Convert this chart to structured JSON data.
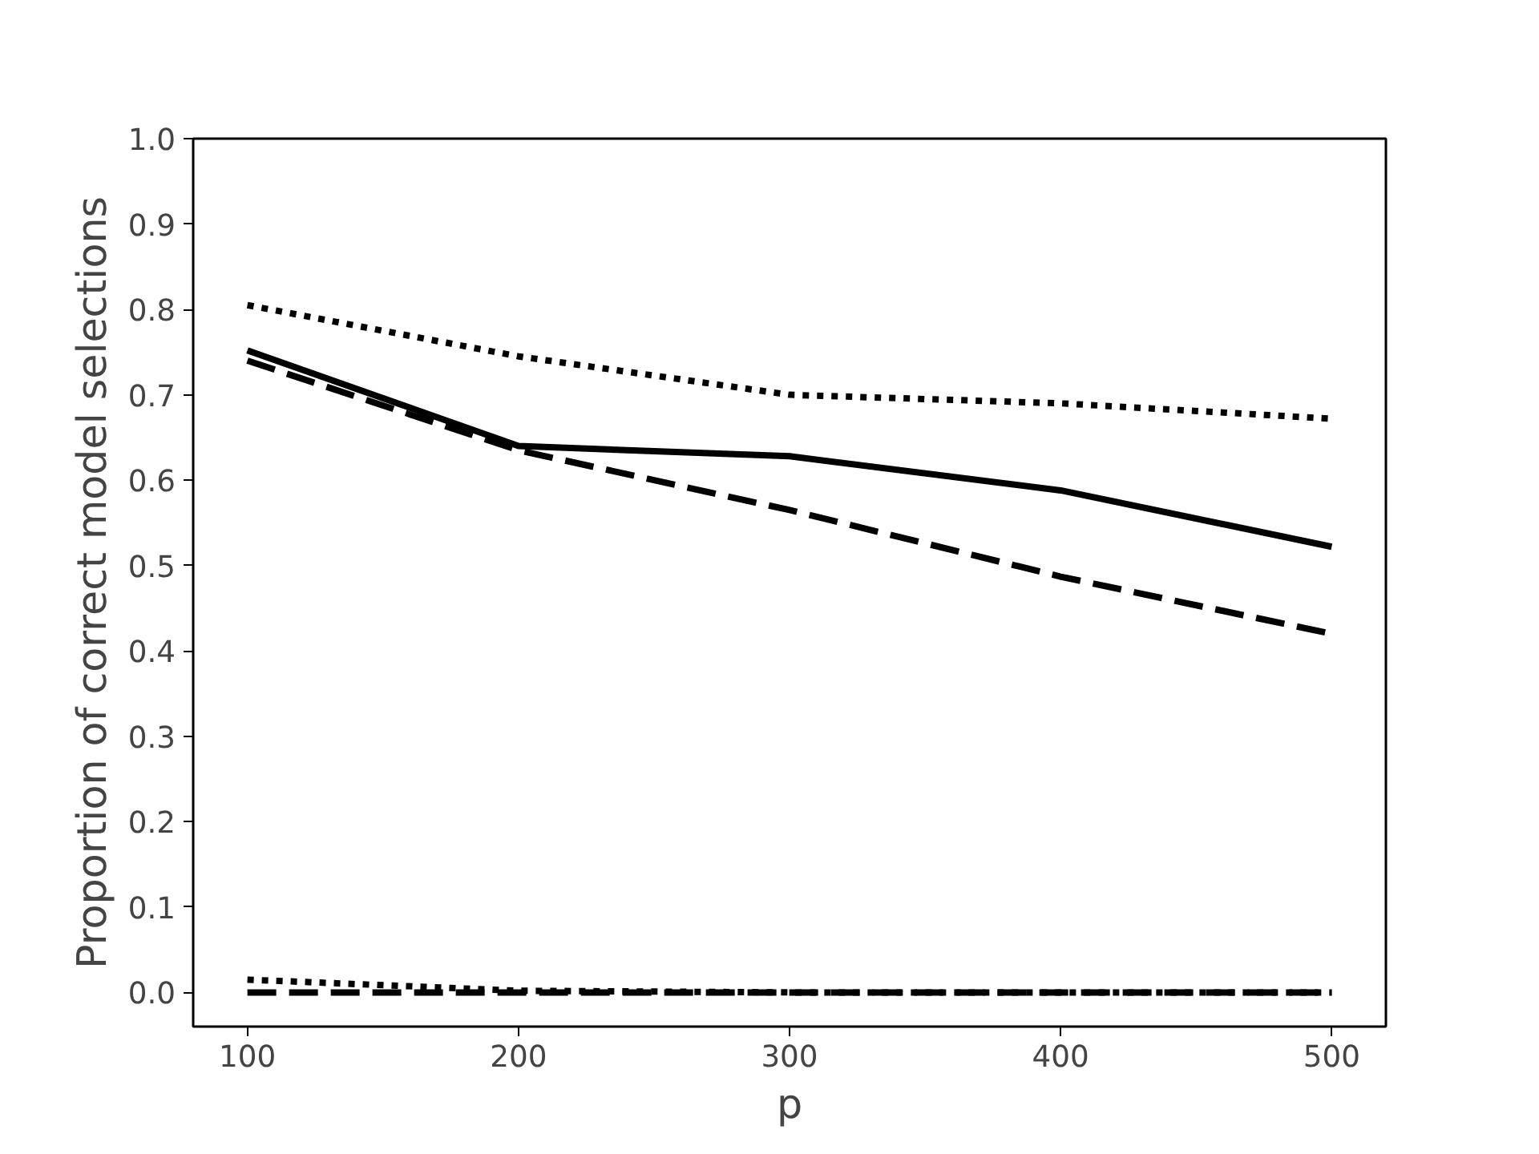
{
  "chart_data": {
    "type": "line",
    "xlabel": "p",
    "ylabel": "Proportion of correct model selections",
    "x": [
      100,
      200,
      300,
      400,
      500
    ],
    "series": [
      {
        "color": "#000000",
        "line_style": "dotted",
        "values": [
          0.805,
          0.745,
          0.7,
          0.69,
          0.672
        ]
      },
      {
        "color": "#000000",
        "line_style": "solid",
        "values": [
          0.752,
          0.64,
          0.628,
          0.588,
          0.522
        ]
      },
      {
        "color": "#000000",
        "line_style": "dashed",
        "values": [
          0.74,
          0.635,
          0.565,
          0.487,
          0.42
        ]
      },
      {
        "color": "#000000",
        "line_style": "dashed",
        "values": [
          0,
          0,
          0,
          0,
          0
        ]
      },
      {
        "color": "#000000",
        "line_style": "dotted",
        "values": [
          0.015,
          0.002,
          0,
          0,
          0
        ]
      }
    ],
    "xlim": [
      80,
      520
    ],
    "ylim": [
      -0.04,
      1.0
    ],
    "xticks": [
      100,
      200,
      300,
      400,
      500
    ],
    "yticks": [
      {
        "value": 0,
        "label": "0.0"
      },
      {
        "value": 0.1,
        "label": "0.1"
      },
      {
        "value": 0.2,
        "label": "0.2"
      },
      {
        "value": 0.3,
        "label": "0.3"
      },
      {
        "value": 0.4,
        "label": "0.4"
      },
      {
        "value": 0.5,
        "label": "0.5"
      },
      {
        "value": 0.6,
        "label": "0.6"
      },
      {
        "value": 0.7,
        "label": "0.7"
      },
      {
        "value": 0.8,
        "label": "0.8"
      },
      {
        "value": 0.9,
        "label": "0.9"
      },
      {
        "value": 1.0,
        "label": "1.0"
      }
    ],
    "grid": false,
    "marker": "none"
  }
}
